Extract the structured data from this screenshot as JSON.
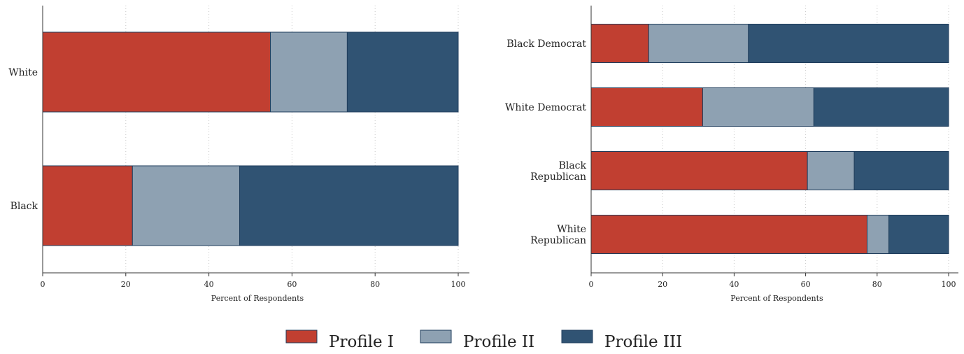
{
  "colors": {
    "profile_1": "#c13f31",
    "profile_2": "#8ea1b2",
    "profile_3": "#305373"
  },
  "legend": [
    {
      "label": "Profile I",
      "color_key": "profile_1"
    },
    {
      "label": "Profile II",
      "color_key": "profile_2"
    },
    {
      "label": "Profile III",
      "color_key": "profile_3"
    }
  ],
  "chart_data": [
    {
      "type": "bar",
      "orientation": "horizontal",
      "stacked": true,
      "title": "",
      "xlabel": "Percent of Respondents",
      "xlim": [
        0,
        100
      ],
      "xticks": [
        0,
        20,
        40,
        60,
        80,
        100
      ],
      "grid": "vertical dotted",
      "categories": [
        [
          "White"
        ],
        [
          "Black"
        ]
      ],
      "series": [
        {
          "name": "Profile I",
          "values": [
            54.8,
            21.6
          ]
        },
        {
          "name": "Profile II",
          "values": [
            18.5,
            25.8
          ]
        },
        {
          "name": "Profile III",
          "values": [
            26.7,
            52.6
          ]
        }
      ]
    },
    {
      "type": "bar",
      "orientation": "horizontal",
      "stacked": true,
      "title": "",
      "xlabel": "Percent of Respondents",
      "xlim": [
        0,
        100
      ],
      "xticks": [
        0,
        20,
        40,
        60,
        80,
        100
      ],
      "grid": "vertical dotted",
      "categories": [
        [
          "Black Democrat"
        ],
        [
          "White Democrat"
        ],
        [
          "Black",
          "Republican"
        ],
        [
          "White",
          "Republican"
        ]
      ],
      "series": [
        {
          "name": "Profile I",
          "values": [
            16.1,
            31.2,
            60.5,
            77.2
          ]
        },
        {
          "name": "Profile II",
          "values": [
            27.9,
            31.1,
            13.1,
            6.1
          ]
        },
        {
          "name": "Profile III",
          "values": [
            56.0,
            37.7,
            26.4,
            16.7
          ]
        }
      ]
    }
  ]
}
